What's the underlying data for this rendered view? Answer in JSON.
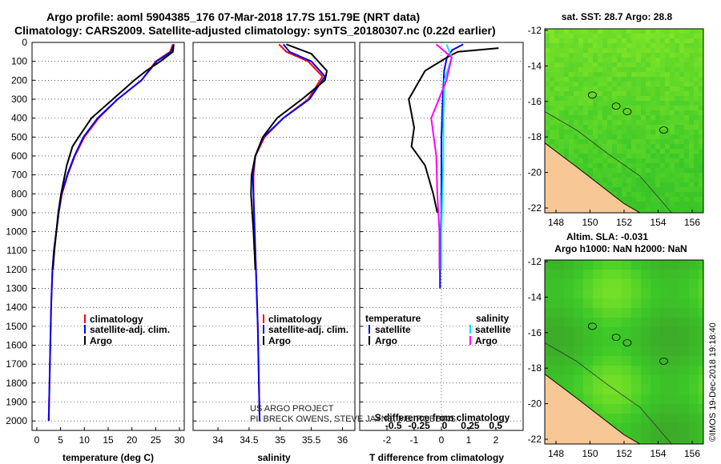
{
  "title": {
    "line1": "Argo profile: aoml 5904385_176 07-Mar-2018 17.7S 151.79E (NRT data)",
    "line2": "Climatology: CARS2009. Satellite-adjusted climatology: synTS_20180307.nc (0.22d earlier)"
  },
  "colors": {
    "climatology": "#ff0000",
    "satellite": "#0000ff",
    "argo": "#000000",
    "sat_salinity": "#00e5ff",
    "argo_salinity": "#ff00ff",
    "land": "#f7c796",
    "sea_green": "#44cc22",
    "sea_yellow": "#d8ee33"
  },
  "chart_data": [
    {
      "type": "line",
      "name": "temperature",
      "xlabel": "temperature (deg C)",
      "ylabel": "",
      "xlim": [
        -1,
        31
      ],
      "ylim": [
        2050,
        0
      ],
      "xticks": [
        0,
        5,
        10,
        15,
        20,
        25,
        30
      ],
      "yticks": [
        0,
        100,
        200,
        300,
        400,
        500,
        600,
        700,
        800,
        900,
        1000,
        1100,
        1200,
        1300,
        1400,
        1500,
        1600,
        1700,
        1800,
        1900,
        2000
      ],
      "series": [
        {
          "name": "climatology",
          "color": "#ff0000",
          "x": [
            28.6,
            28,
            25,
            22,
            17,
            13,
            10,
            8,
            6.5,
            5.3,
            4.6,
            4.1,
            3.6,
            3.3,
            3.0,
            2.5
          ],
          "y": [
            10,
            50,
            100,
            200,
            300,
            400,
            500,
            600,
            700,
            800,
            900,
            1000,
            1100,
            1200,
            1400,
            2000
          ]
        },
        {
          "name": "satellite-adj. clim.",
          "color": "#0000ff",
          "x": [
            28.8,
            28.2,
            25.2,
            22,
            17,
            12.8,
            9.8,
            7.9,
            6.4,
            5.2,
            4.6,
            4.1,
            3.6,
            3.3,
            3.0,
            2.5
          ],
          "y": [
            10,
            50,
            100,
            200,
            300,
            400,
            500,
            600,
            700,
            800,
            900,
            1000,
            1100,
            1200,
            1400,
            2000
          ]
        },
        {
          "name": "Argo",
          "color": "#000000",
          "x": [
            28.8,
            28.6,
            26,
            23,
            20.5,
            16,
            11.5,
            8.8,
            7.5,
            6.3,
            5.1,
            4.5,
            4.1,
            3.7,
            3.4
          ],
          "y": [
            10,
            50,
            100,
            150,
            200,
            300,
            400,
            500,
            550,
            650,
            800,
            900,
            1000,
            1100,
            1200
          ]
        }
      ],
      "legend": [
        "climatology",
        "satellite-adj. clim.",
        "Argo"
      ]
    },
    {
      "type": "line",
      "name": "salinity",
      "xlabel": "salinity",
      "xlim": [
        33.6,
        36.2
      ],
      "ylim": [
        2050,
        0
      ],
      "xticks": [
        34,
        34.5,
        35,
        35.5,
        36
      ],
      "series": [
        {
          "name": "climatology",
          "color": "#ff0000",
          "x": [
            34.98,
            35.1,
            35.45,
            35.68,
            35.45,
            35.05,
            34.75,
            34.6,
            34.57,
            34.57,
            34.59,
            34.61,
            34.64,
            34.67
          ],
          "y": [
            10,
            50,
            100,
            180,
            300,
            400,
            500,
            600,
            700,
            800,
            1000,
            1200,
            1500,
            2000
          ]
        },
        {
          "name": "satellite-adj. clim.",
          "color": "#0000ff",
          "x": [
            35.05,
            35.15,
            35.5,
            35.72,
            35.47,
            35.05,
            34.73,
            34.6,
            34.56,
            34.57,
            34.59,
            34.61,
            34.64,
            34.67
          ],
          "y": [
            10,
            50,
            100,
            180,
            300,
            400,
            500,
            600,
            700,
            800,
            1000,
            1200,
            1500,
            2000
          ]
        },
        {
          "name": "Argo",
          "color": "#000000",
          "x": [
            35.1,
            35.5,
            35.75,
            35.72,
            35.35,
            34.95,
            34.72,
            34.6,
            34.54,
            34.53,
            34.57,
            34.6
          ],
          "y": [
            10,
            60,
            150,
            200,
            300,
            400,
            500,
            600,
            700,
            800,
            1000,
            1200
          ]
        }
      ],
      "legend": [
        "climatology",
        "satellite-adj. clim.",
        "Argo"
      ]
    },
    {
      "type": "line",
      "name": "difference",
      "xlabel": "T difference from climatology",
      "xlim": [
        -3,
        3
      ],
      "ylim": [
        2050,
        0
      ],
      "xticks": [
        -2,
        -1,
        0,
        1,
        2
      ],
      "sticks_label": "S difference from climatology",
      "sticks": [
        -0.5,
        -0.25,
        0,
        0.25,
        0.5
      ],
      "series": [
        {
          "name": "T satellite",
          "color": "#0000ff",
          "x": [
            0.8,
            0.4,
            0.2,
            0.1,
            0.05,
            0,
            0,
            0,
            -0.05,
            -0.05,
            -0.05
          ],
          "y": [
            10,
            40,
            80,
            150,
            300,
            500,
            700,
            900,
            1100,
            1200,
            1300
          ]
        },
        {
          "name": "T Argo",
          "color": "#000000",
          "x": [
            2.1,
            0.6,
            0.2,
            -0.6,
            -1.2,
            -1.0,
            -1.1,
            -0.6,
            -0.5,
            -0.3,
            -0.15
          ],
          "y": [
            30,
            50,
            80,
            150,
            300,
            450,
            550,
            650,
            700,
            800,
            900
          ]
        },
        {
          "name": "S satellite",
          "color": "#00e5ff",
          "x": [
            0.05,
            0.1,
            0.03,
            0.02,
            0.02,
            0.01,
            0,
            0
          ],
          "y": [
            10,
            80,
            200,
            400,
            600,
            800,
            1000,
            1200
          ]
        },
        {
          "name": "S Argo",
          "color": "#ff00ff",
          "x": [
            -0.05,
            0.1,
            0.05,
            -0.1,
            -0.05,
            -0.04,
            -0.02,
            -0.02
          ],
          "y": [
            10,
            80,
            200,
            400,
            600,
            800,
            1000,
            1200
          ]
        }
      ],
      "legend_left": {
        "title": "temperature",
        "items": [
          "satellite",
          "Argo"
        ]
      },
      "legend_right": {
        "title": "salinity",
        "items": [
          "satellite",
          "Argo"
        ]
      }
    }
  ],
  "credits": {
    "line1": "US ARGO PROJECT",
    "line2": "PI: BRECK OWENS, STEVE JAYNE, P.E. ROBBINS"
  },
  "maps": [
    {
      "title": "sat. SST: 28.7 Argo: 28.8",
      "xticks": [
        148,
        150,
        152,
        154,
        156
      ],
      "yticks": [
        -12,
        -14,
        -16,
        -18,
        -20,
        -22
      ]
    },
    {
      "title1": "Altim. SLA: -0.031",
      "title2": "Argo h1000: NaN h2000: NaN",
      "xticks": [
        148,
        150,
        152,
        154,
        156
      ],
      "yticks": [
        -12,
        -14,
        -16,
        -18,
        -20,
        -22
      ]
    }
  ],
  "stamp": "©IMOS 19-Dec-2018 19:18:40"
}
